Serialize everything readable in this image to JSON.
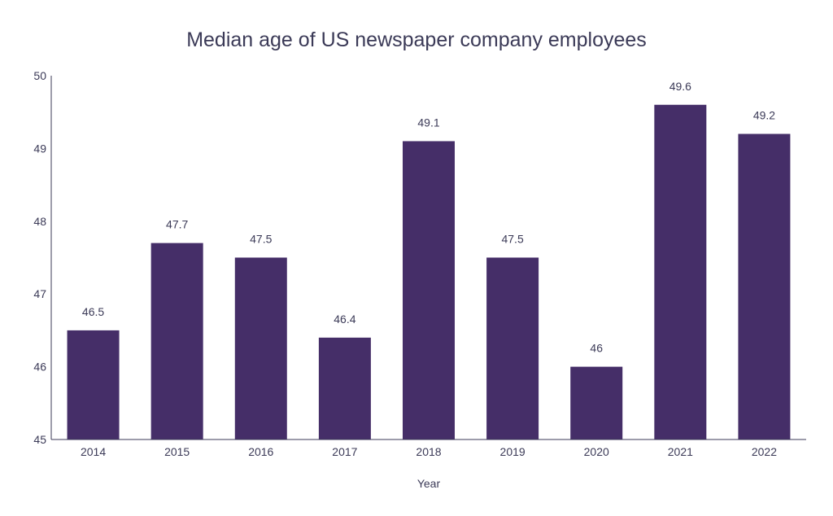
{
  "chart_data": {
    "type": "bar",
    "title": "Median age of US newspaper company employees",
    "xlabel": "Year",
    "ylabel": "",
    "categories": [
      "2014",
      "2015",
      "2016",
      "2017",
      "2018",
      "2019",
      "2020",
      "2021",
      "2022"
    ],
    "values": [
      46.5,
      47.7,
      47.5,
      46.4,
      49.1,
      47.5,
      46,
      49.6,
      49.2
    ],
    "data_labels": [
      "46.5",
      "47.7",
      "47.5",
      "46.4",
      "49.1",
      "47.5",
      "46",
      "49.6",
      "49.2"
    ],
    "ylim": [
      45,
      50
    ],
    "yticks": [
      "45",
      "46",
      "47",
      "48",
      "49",
      "50"
    ],
    "grid": false,
    "legend": "none",
    "bar_color": "#452e68",
    "text_color": "#3b3a57"
  }
}
